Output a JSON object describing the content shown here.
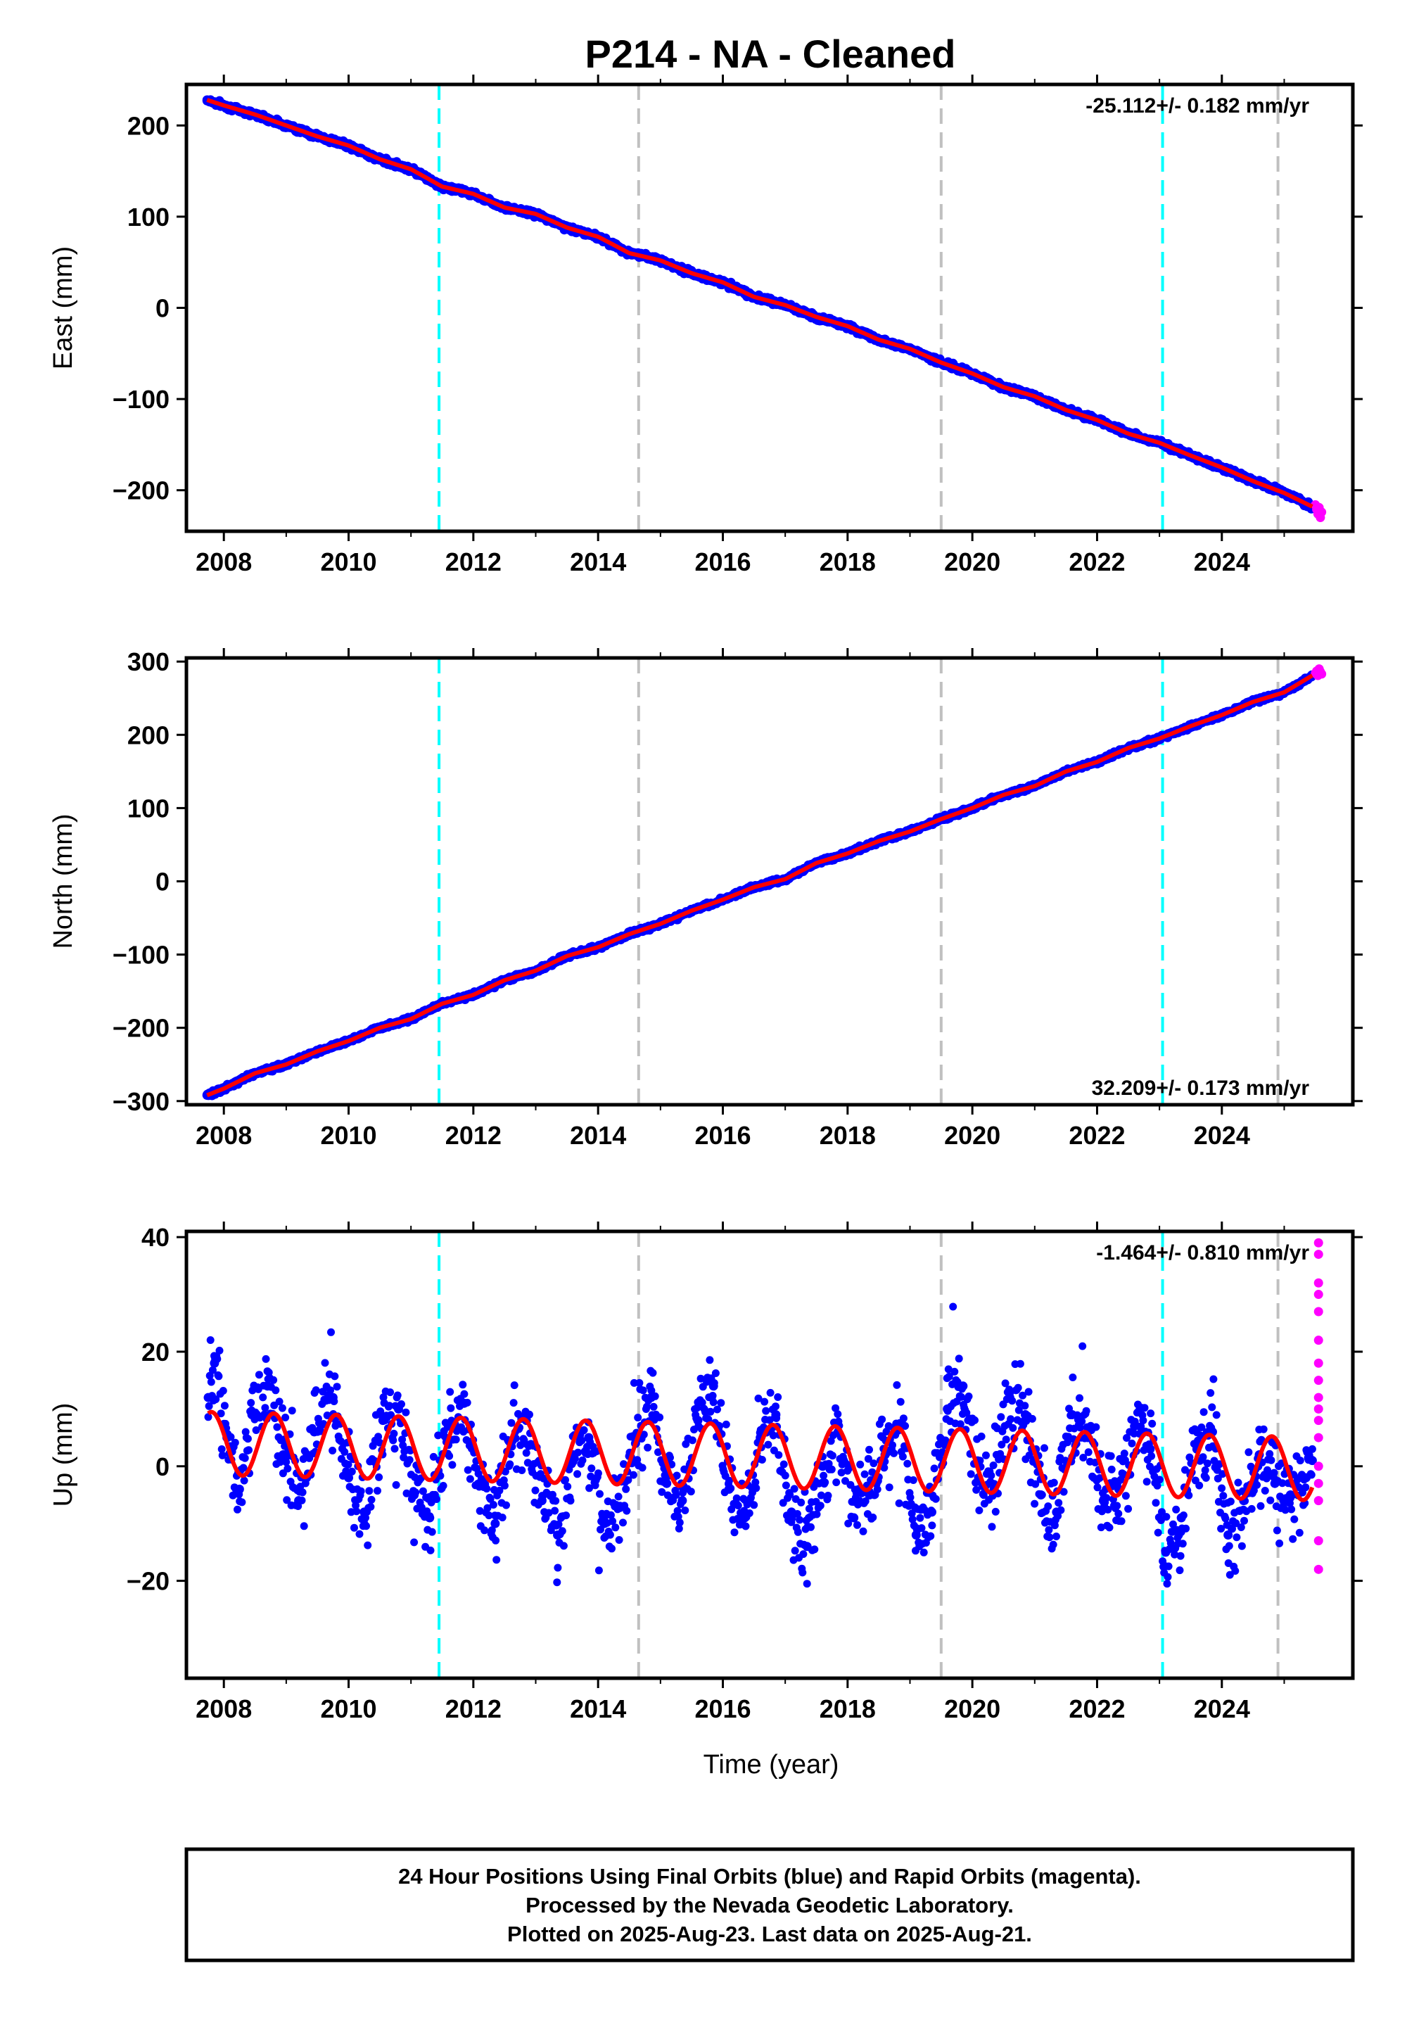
{
  "title": "P214  - NA - Cleaned",
  "xlabel": "Time (year)",
  "footer": {
    "lines": [
      "24 Hour Positions Using Final Orbits (blue) and Rapid Orbits (magenta).",
      "Processed by the Nevada Geodetic Laboratory.",
      "Plotted on 2025-Aug-23. Last data on 2025-Aug-21."
    ]
  },
  "colors": {
    "final_orbits": "#0000ff",
    "rapid_orbits": "#ff00ff",
    "model_fit": "#ff0000",
    "equipment_change": "#00ffff",
    "other_event": "#c0c0c0"
  },
  "chart_data": [
    {
      "type": "scatter",
      "ylabel": "East (mm)",
      "rate_label": "-25.112+/- 0.182 mm/yr",
      "xlim": [
        2007.4,
        2026.1
      ],
      "ylim": [
        -245,
        245
      ],
      "xticks": [
        2008,
        2010,
        2012,
        2014,
        2016,
        2018,
        2020,
        2022,
        2024
      ],
      "yticks": [
        -200,
        -100,
        0,
        100,
        200
      ],
      "vlines_cyan": [
        2011.45,
        2023.05
      ],
      "vlines_gray": [
        2014.65,
        2019.5,
        2024.9
      ],
      "series": [
        {
          "name": "Final Orbits (blue)",
          "color": "#0000ff",
          "x": [
            2007.73,
            2008.0,
            2008.5,
            2009.0,
            2009.5,
            2010.0,
            2010.5,
            2011.0,
            2011.5,
            2012.0,
            2012.5,
            2013.0,
            2013.5,
            2014.0,
            2014.5,
            2015.0,
            2015.5,
            2016.0,
            2016.5,
            2017.0,
            2017.5,
            2018.0,
            2018.5,
            2019.0,
            2019.5,
            2020.0,
            2020.5,
            2021.0,
            2021.5,
            2022.0,
            2022.5,
            2023.0,
            2023.5,
            2024.0,
            2024.5,
            2025.0,
            2025.45
          ],
          "y": [
            228,
            222,
            212,
            200,
            188,
            178,
            163,
            152,
            133,
            125,
            110,
            103,
            88,
            78,
            60,
            52,
            38,
            28,
            12,
            3,
            -10,
            -20,
            -35,
            -45,
            -60,
            -72,
            -87,
            -97,
            -112,
            -123,
            -138,
            -148,
            -162,
            -175,
            -190,
            -203,
            -218
          ]
        },
        {
          "name": "Rapid Orbits (magenta)",
          "color": "#ff00ff",
          "x": [
            2025.5,
            2025.52,
            2025.54,
            2025.56,
            2025.58,
            2025.6
          ],
          "y": [
            -216,
            -221,
            -226,
            -219,
            -230,
            -224
          ]
        }
      ]
    },
    {
      "type": "scatter",
      "ylabel": "North (mm)",
      "rate_label": "32.209+/- 0.173 mm/yr",
      "xlim": [
        2007.4,
        2026.1
      ],
      "ylim": [
        -305,
        305
      ],
      "xticks": [
        2008,
        2010,
        2012,
        2014,
        2016,
        2018,
        2020,
        2022,
        2024
      ],
      "yticks": [
        -300,
        -200,
        -100,
        0,
        100,
        200,
        300
      ],
      "vlines_cyan": [
        2011.45,
        2023.05
      ],
      "vlines_gray": [
        2014.65,
        2019.5,
        2024.9
      ],
      "series": [
        {
          "name": "Final Orbits (blue)",
          "color": "#0000ff",
          "x": [
            2007.73,
            2008.0,
            2008.5,
            2009.0,
            2009.5,
            2010.0,
            2010.5,
            2011.0,
            2011.5,
            2012.0,
            2012.5,
            2013.0,
            2013.5,
            2014.0,
            2014.5,
            2015.0,
            2015.5,
            2016.0,
            2016.5,
            2017.0,
            2017.5,
            2018.0,
            2018.5,
            2019.0,
            2019.5,
            2020.0,
            2020.5,
            2021.0,
            2021.5,
            2022.0,
            2022.5,
            2023.0,
            2023.5,
            2024.0,
            2024.5,
            2025.0,
            2025.45
          ],
          "y": [
            -292,
            -283,
            -262,
            -250,
            -232,
            -218,
            -200,
            -188,
            -167,
            -155,
            -135,
            -122,
            -102,
            -90,
            -72,
            -58,
            -40,
            -25,
            -8,
            3,
            25,
            38,
            55,
            68,
            85,
            100,
            118,
            130,
            150,
            163,
            182,
            195,
            212,
            227,
            245,
            258,
            281
          ]
        },
        {
          "name": "Rapid Orbits (magenta)",
          "color": "#ff00ff",
          "x": [
            2025.5,
            2025.52,
            2025.54,
            2025.56,
            2025.58,
            2025.6
          ],
          "y": [
            284,
            287,
            281,
            290,
            286,
            283
          ]
        }
      ]
    },
    {
      "type": "scatter",
      "ylabel": "Up (mm)",
      "rate_label": "-1.464+/- 0.810 mm/yr",
      "xlim": [
        2007.4,
        2026.1
      ],
      "ylim": [
        -37,
        41
      ],
      "xticks": [
        2008,
        2010,
        2012,
        2014,
        2016,
        2018,
        2020,
        2022,
        2024
      ],
      "yticks": [
        -20,
        0,
        20,
        40
      ],
      "vlines_cyan": [
        2011.45,
        2023.05
      ],
      "vlines_gray": [
        2014.65,
        2019.5,
        2024.9
      ],
      "series": [
        {
          "name": "Final Orbits (blue)",
          "color": "#0000ff",
          "x": [
            2007.75,
            2007.85,
            2008.05,
            2008.25,
            2008.45,
            2008.7,
            2008.95,
            2009.2,
            2009.45,
            2009.75,
            2010.0,
            2010.25,
            2010.55,
            2010.8,
            2011.05,
            2011.3,
            2011.6,
            2011.85,
            2012.1,
            2012.35,
            2012.6,
            2012.85,
            2013.1,
            2013.35,
            2013.6,
            2013.85,
            2014.1,
            2014.35,
            2014.6,
            2014.85,
            2015.1,
            2015.35,
            2015.6,
            2015.85,
            2016.1,
            2016.35,
            2016.6,
            2016.85,
            2017.1,
            2017.35,
            2017.6,
            2017.85,
            2018.1,
            2018.35,
            2018.6,
            2018.85,
            2019.1,
            2019.35,
            2019.6,
            2019.85,
            2020.1,
            2020.35,
            2020.6,
            2020.85,
            2021.1,
            2021.35,
            2021.6,
            2021.85,
            2022.1,
            2022.35,
            2022.6,
            2022.85,
            2023.1,
            2023.35,
            2023.6,
            2023.85,
            2024.1,
            2024.35,
            2024.6,
            2024.85,
            2025.1,
            2025.35,
            2025.45
          ],
          "y": [
            12,
            18,
            5,
            -4,
            9,
            14,
            2,
            -6,
            6,
            12,
            -2,
            -8,
            8,
            10,
            -5,
            -9,
            7,
            11,
            -3,
            -10,
            4,
            8,
            -6,
            -12,
            2,
            5,
            -10,
            -7,
            4,
            12,
            -3,
            -6,
            8,
            14,
            -4,
            -9,
            5,
            9,
            -8,
            -14,
            0,
            6,
            -9,
            -5,
            2,
            7,
            -12,
            -8,
            10,
            14,
            -2,
            -4,
            12,
            9,
            -5,
            -8,
            9,
            6,
            -6,
            -4,
            7,
            3,
            -15,
            -9,
            3,
            6,
            -12,
            -6,
            2,
            -3,
            -5,
            -2,
            1
          ]
        },
        {
          "name": "Rapid Orbits (magenta)",
          "color": "#ff00ff",
          "x": [
            2025.55,
            2025.55,
            2025.55,
            2025.55,
            2025.55,
            2025.55,
            2025.55,
            2025.55,
            2025.55,
            2025.55,
            2025.55,
            2025.55,
            2025.55,
            2025.55,
            2025.55,
            2025.55,
            2025.55
          ],
          "y": [
            39,
            37,
            32,
            30,
            27,
            22,
            18,
            15,
            12,
            10,
            8,
            5,
            0,
            -3,
            -6,
            -13,
            -18
          ]
        }
      ]
    }
  ]
}
